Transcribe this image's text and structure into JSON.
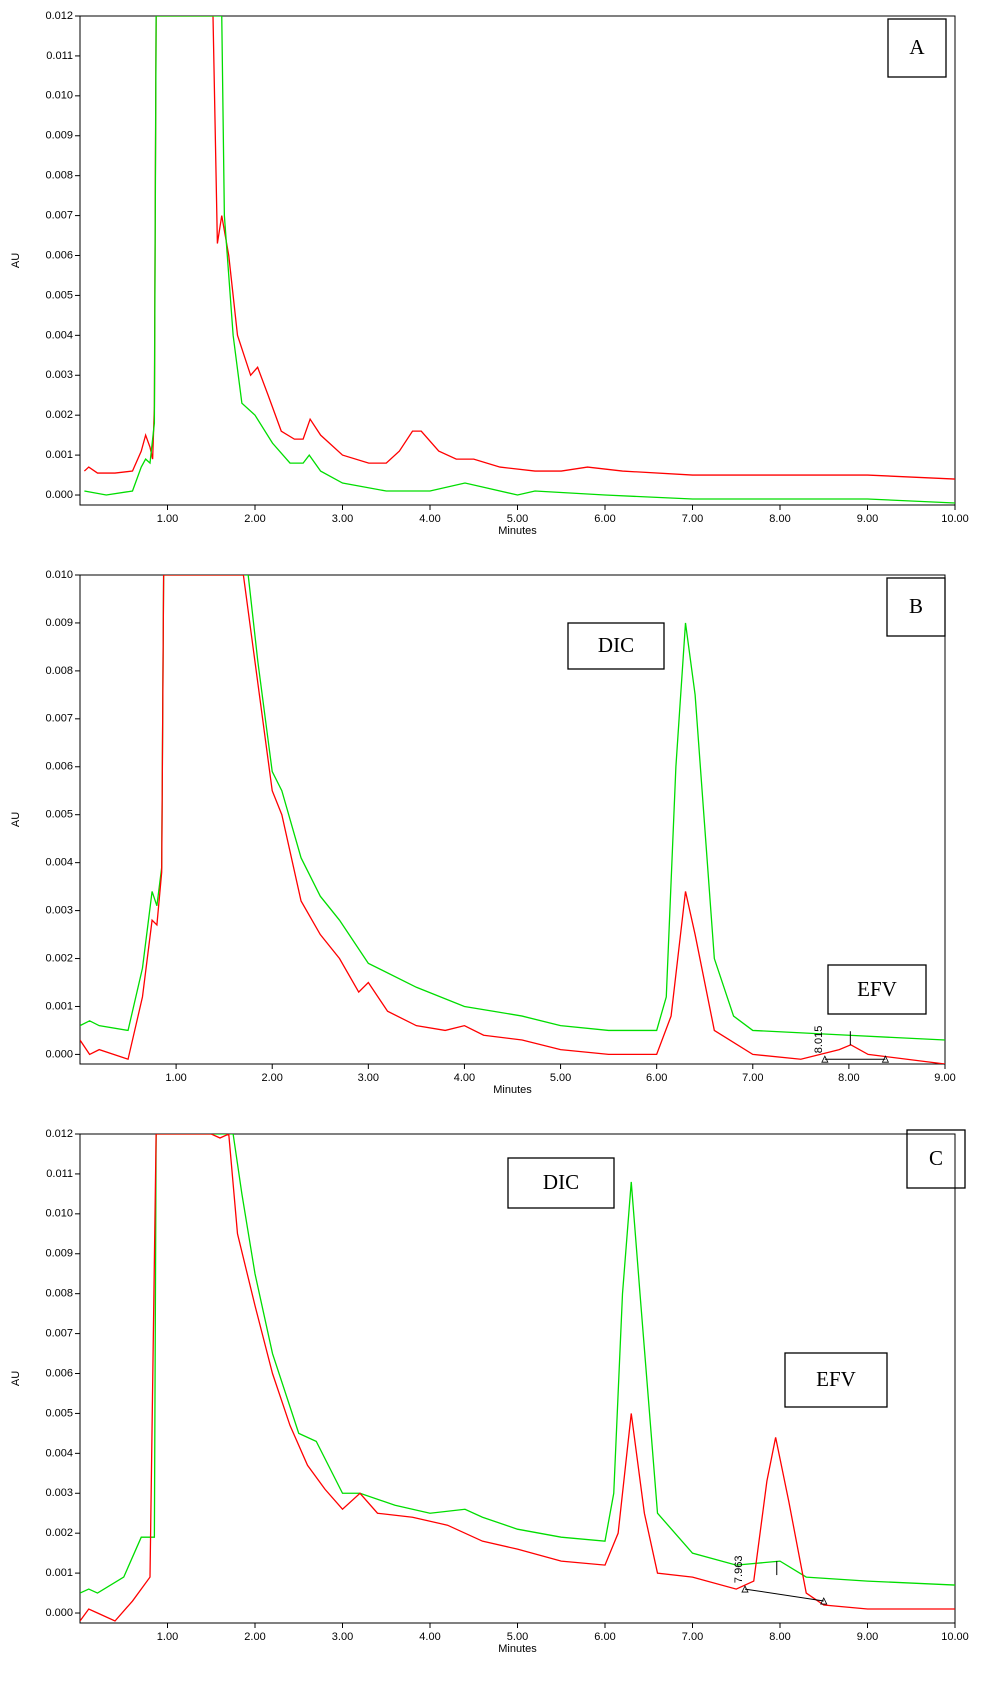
{
  "chart_data": [
    {
      "type": "line",
      "panel_label": "A",
      "y_label": "AU",
      "x_label": "Minutes",
      "xlim": [
        0,
        10
      ],
      "ylim": [
        -0.00025,
        0.012
      ],
      "xticks": [
        {
          "value": 1,
          "label": "1.00"
        },
        {
          "value": 2,
          "label": "2.00"
        },
        {
          "value": 3,
          "label": "3.00"
        },
        {
          "value": 4,
          "label": "4.00"
        },
        {
          "value": 5,
          "label": "5.00"
        },
        {
          "value": 6,
          "label": "6.00"
        },
        {
          "value": 7,
          "label": "7.00"
        },
        {
          "value": 8,
          "label": "8.00"
        },
        {
          "value": 9,
          "label": "9.00"
        },
        {
          "value": 10,
          "label": "10.00"
        }
      ],
      "yticks": [
        {
          "value": 0,
          "label": "0.000"
        },
        {
          "value": 0.001,
          "label": "0.001"
        },
        {
          "value": 0.002,
          "label": "0.002"
        },
        {
          "value": 0.003,
          "label": "0.003"
        },
        {
          "value": 0.004,
          "label": "0.004"
        },
        {
          "value": 0.005,
          "label": "0.005"
        },
        {
          "value": 0.006,
          "label": "0.006"
        },
        {
          "value": 0.007,
          "label": "0.007"
        },
        {
          "value": 0.008,
          "label": "0.008"
        },
        {
          "value": 0.009,
          "label": "0.009"
        },
        {
          "value": 0.01,
          "label": "0.010"
        },
        {
          "value": 0.011,
          "label": "0.011"
        },
        {
          "value": 0.012,
          "label": "0.012"
        }
      ],
      "series": [
        {
          "color": "#ff0000",
          "x": [
            0.05,
            0.1,
            0.2,
            0.4,
            0.6,
            0.7,
            0.75,
            0.8,
            0.83,
            0.85,
            0.86,
            0.87,
            1.5,
            1.52,
            1.57,
            1.62,
            1.7,
            1.8,
            1.95,
            2.03,
            2.15,
            2.3,
            2.45,
            2.55,
            2.63,
            2.75,
            3.0,
            3.3,
            3.5,
            3.65,
            3.8,
            3.9,
            4.1,
            4.3,
            4.5,
            4.8,
            5.2,
            5.5,
            5.8,
            6.2,
            7,
            8,
            9,
            10
          ],
          "values": [
            0.0006,
            0.0007,
            0.00055,
            0.00055,
            0.0006,
            0.0011,
            0.0015,
            0.0012,
            0.0009,
            0.0022,
            0.0074,
            0.012,
            0.012,
            0.012,
            0.0063,
            0.007,
            0.006,
            0.004,
            0.003,
            0.0032,
            0.0025,
            0.0016,
            0.0014,
            0.0014,
            0.0019,
            0.0015,
            0.001,
            0.0008,
            0.0008,
            0.0011,
            0.0016,
            0.0016,
            0.0011,
            0.0009,
            0.0009,
            0.0007,
            0.0006,
            0.0006,
            0.0007,
            0.0006,
            0.0005,
            0.0005,
            0.0005,
            0.0004
          ]
        },
        {
          "color": "#00dd00",
          "x": [
            0.05,
            0.3,
            0.6,
            0.7,
            0.75,
            0.8,
            0.85,
            0.87,
            1.6,
            1.62,
            1.65,
            1.75,
            1.85,
            2.0,
            2.2,
            2.4,
            2.55,
            2.62,
            2.75,
            3.0,
            3.5,
            4.0,
            4.4,
            4.6,
            5.0,
            5.2,
            6,
            7,
            8,
            9,
            10
          ],
          "values": [
            0.0001,
            0,
            0.0001,
            0.0007,
            0.0009,
            0.0008,
            0.0018,
            0.012,
            0.012,
            0.012,
            0.007,
            0.004,
            0.0023,
            0.002,
            0.0013,
            0.0008,
            0.0008,
            0.001,
            0.0006,
            0.0003,
            0.0001,
            0.0001,
            0.0003,
            0.0002,
            0,
            0.0001,
            0,
            -0.0001,
            -0.0001,
            -0.0001,
            -0.0002
          ]
        }
      ]
    },
    {
      "type": "line",
      "panel_label": "B",
      "y_label": "AU",
      "x_label": "Minutes",
      "annotations": [
        "DIC",
        "EFV"
      ],
      "xlim": [
        0,
        9
      ],
      "ylim": [
        -0.0002,
        0.01
      ],
      "xticks": [
        {
          "value": 1,
          "label": "1.00"
        },
        {
          "value": 2,
          "label": "2.00"
        },
        {
          "value": 3,
          "label": "3.00"
        },
        {
          "value": 4,
          "label": "4.00"
        },
        {
          "value": 5,
          "label": "5.00"
        },
        {
          "value": 6,
          "label": "6.00"
        },
        {
          "value": 7,
          "label": "7.00"
        },
        {
          "value": 8,
          "label": "8.00"
        },
        {
          "value": 9,
          "label": "9.00"
        }
      ],
      "yticks": [
        {
          "value": 0,
          "label": "0.000"
        },
        {
          "value": 0.001,
          "label": "0.001"
        },
        {
          "value": 0.002,
          "label": "0.002"
        },
        {
          "value": 0.003,
          "label": "0.003"
        },
        {
          "value": 0.004,
          "label": "0.004"
        },
        {
          "value": 0.005,
          "label": "0.005"
        },
        {
          "value": 0.006,
          "label": "0.006"
        },
        {
          "value": 0.007,
          "label": "0.007"
        },
        {
          "value": 0.008,
          "label": "0.008"
        },
        {
          "value": 0.009,
          "label": "0.009"
        },
        {
          "value": 0.01,
          "label": "0.010"
        }
      ],
      "series": [
        {
          "color": "#00dd00",
          "x": [
            0,
            0.1,
            0.2,
            0.5,
            0.65,
            0.75,
            0.8,
            0.85,
            0.87,
            1.75,
            1.85,
            2.0,
            2.1,
            2.3,
            2.5,
            2.7,
            3.0,
            3.5,
            4.0,
            4.3,
            4.6,
            5.0,
            5.5,
            6.0,
            6.1,
            6.2,
            6.3,
            6.4,
            6.6,
            6.8,
            7.0,
            8,
            9
          ],
          "values": [
            0.0006,
            0.0007,
            0.0006,
            0.0005,
            0.0018,
            0.0034,
            0.0031,
            0.0039,
            0.01,
            0.01,
            0.0082,
            0.0059,
            0.0055,
            0.0041,
            0.0033,
            0.0028,
            0.0019,
            0.0014,
            0.001,
            0.0009,
            0.0008,
            0.0006,
            0.0005,
            0.0005,
            0.0012,
            0.006,
            0.009,
            0.0075,
            0.002,
            0.0008,
            0.0005,
            0.0004,
            0.0003
          ]
        },
        {
          "color": "#ff0000",
          "x": [
            0,
            0.1,
            0.2,
            0.5,
            0.65,
            0.75,
            0.8,
            0.85,
            0.87,
            1.7,
            1.8,
            2.0,
            2.1,
            2.3,
            2.5,
            2.7,
            2.9,
            3.0,
            3.2,
            3.5,
            3.8,
            4.0,
            4.2,
            4.6,
            5.0,
            5.5,
            6.0,
            6.15,
            6.3,
            6.4,
            6.6,
            7.0,
            7.5,
            7.9,
            8.02,
            8.2,
            9
          ],
          "values": [
            0.0003,
            0,
            0.0001,
            -0.0001,
            0.0012,
            0.0028,
            0.0027,
            0.0038,
            0.01,
            0.01,
            0.0085,
            0.0055,
            0.005,
            0.0032,
            0.0025,
            0.002,
            0.0013,
            0.0015,
            0.0009,
            0.0006,
            0.0005,
            0.0006,
            0.0004,
            0.0003,
            0.0001,
            0,
            0,
            0.0008,
            0.0034,
            0.0025,
            0.0005,
            0,
            -0.0001,
            0.0001,
            0.0002,
            0,
            -0.0002
          ]
        }
      ],
      "peak_retention_time": 8.015,
      "integration_baseline": {
        "x": [
          7.75,
          8.38
        ],
        "y": [
          -0.0001,
          -0.0001
        ]
      }
    },
    {
      "type": "line",
      "panel_label": "C",
      "y_label": "AU",
      "x_label": "Minutes",
      "annotations": [
        "DIC",
        "EFV"
      ],
      "xlim": [
        0,
        10
      ],
      "ylim": [
        -0.00025,
        0.012
      ],
      "xticks": [
        {
          "value": 1,
          "label": "1.00"
        },
        {
          "value": 2,
          "label": "2.00"
        },
        {
          "value": 3,
          "label": "3.00"
        },
        {
          "value": 4,
          "label": "4.00"
        },
        {
          "value": 5,
          "label": "5.00"
        },
        {
          "value": 6,
          "label": "6.00"
        },
        {
          "value": 7,
          "label": "7.00"
        },
        {
          "value": 8,
          "label": "8.00"
        },
        {
          "value": 9,
          "label": "9.00"
        },
        {
          "value": 10,
          "label": "10.00"
        }
      ],
      "yticks": [
        {
          "value": 0,
          "label": "0.000"
        },
        {
          "value": 0.001,
          "label": "0.001"
        },
        {
          "value": 0.002,
          "label": "0.002"
        },
        {
          "value": 0.003,
          "label": "0.003"
        },
        {
          "value": 0.004,
          "label": "0.004"
        },
        {
          "value": 0.005,
          "label": "0.005"
        },
        {
          "value": 0.006,
          "label": "0.006"
        },
        {
          "value": 0.007,
          "label": "0.007"
        },
        {
          "value": 0.008,
          "label": "0.008"
        },
        {
          "value": 0.009,
          "label": "0.009"
        },
        {
          "value": 0.01,
          "label": "0.010"
        },
        {
          "value": 0.011,
          "label": "0.011"
        },
        {
          "value": 0.012,
          "label": "0.012"
        }
      ],
      "series": [
        {
          "color": "#00dd00",
          "x": [
            0,
            0.1,
            0.2,
            0.5,
            0.7,
            0.85,
            0.87,
            1.75,
            1.85,
            2.0,
            2.2,
            2.5,
            2.7,
            3.0,
            3.2,
            3.6,
            4.0,
            4.4,
            4.6,
            5.0,
            5.5,
            6.0,
            6.1,
            6.2,
            6.3,
            6.4,
            6.6,
            7.0,
            7.5,
            8.0,
            8.3,
            9,
            10
          ],
          "values": [
            0.0005,
            0.0006,
            0.0005,
            0.0009,
            0.0019,
            0.0019,
            0.012,
            0.012,
            0.0105,
            0.0085,
            0.0065,
            0.0045,
            0.0043,
            0.003,
            0.003,
            0.0027,
            0.0025,
            0.0026,
            0.0024,
            0.0021,
            0.0019,
            0.0018,
            0.003,
            0.008,
            0.0108,
            0.008,
            0.0025,
            0.0015,
            0.0012,
            0.0013,
            0.0009,
            0.0008,
            0.0007
          ]
        },
        {
          "color": "#ff0000",
          "x": [
            0,
            0.1,
            0.2,
            0.4,
            0.6,
            0.8,
            0.87,
            1.5,
            1.6,
            1.7,
            1.8,
            2.0,
            2.2,
            2.4,
            2.6,
            2.8,
            3.0,
            3.2,
            3.4,
            3.8,
            4.2,
            4.6,
            5.0,
            5.5,
            6.0,
            6.15,
            6.3,
            6.45,
            6.6,
            7.0,
            7.5,
            7.7,
            7.85,
            7.95,
            8.1,
            8.3,
            8.5,
            9,
            10
          ],
          "values": [
            -0.0002,
            0.0001,
            0,
            -0.0002,
            0.0003,
            0.0009,
            0.012,
            0.012,
            0.0119,
            0.012,
            0.0095,
            0.0077,
            0.006,
            0.0047,
            0.0037,
            0.0031,
            0.0026,
            0.003,
            0.0025,
            0.0024,
            0.0022,
            0.0018,
            0.0016,
            0.0013,
            0.0012,
            0.002,
            0.005,
            0.0025,
            0.001,
            0.0009,
            0.0006,
            0.0008,
            0.0033,
            0.0044,
            0.0028,
            0.0005,
            0.0002,
            0.0001,
            0.0001
          ]
        }
      ],
      "peak_retention_time": 7.963,
      "integration_baseline": {
        "x": [
          7.6,
          8.5
        ],
        "y": [
          0.0006,
          0.0003
        ]
      }
    }
  ]
}
